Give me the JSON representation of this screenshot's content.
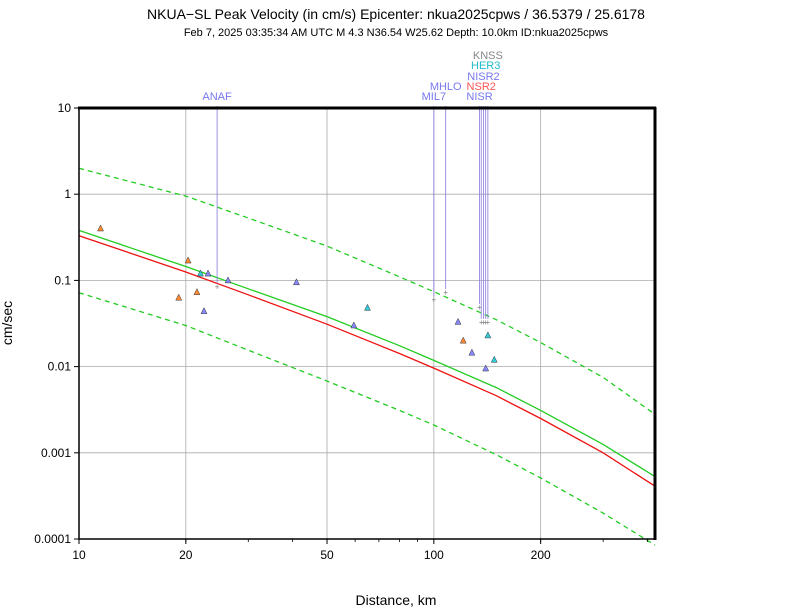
{
  "chart_data": {
    "type": "scatter",
    "title": "NKUA−SL Peak Velocity (in cm/s)  Epicenter: nkua2025cpws / 36.5379 / 25.6178",
    "subtitle": "Feb  7, 2025 03:35:34 AM UTC    M 4.3    N36.54 W25.62    Depth: 10.0km    ID:nkua2025cpws",
    "xlabel": "Distance, km",
    "ylabel": "cm/sec",
    "x_scale": "log",
    "y_scale": "log",
    "xlim": [
      10,
      420
    ],
    "ylim": [
      0.0001,
      10
    ],
    "grid": true,
    "x_ticks": [
      10,
      20,
      50,
      100,
      200
    ],
    "x_tick_labels": [
      "10",
      "20",
      "50",
      "100",
      "200"
    ],
    "y_ticks": [
      0.0001,
      0.001,
      0.01,
      0.1,
      1,
      10
    ],
    "y_tick_labels": [
      "0.0001",
      "0.001",
      "0.01",
      "0.1",
      "1",
      "10"
    ],
    "colors": {
      "median": "#22cc22",
      "bounds": "#22cc22",
      "bias_corrected": "#ee1111",
      "leader": "#8877dd",
      "flag": "#777777"
    },
    "series": [
      {
        "style": "solid-green",
        "x": [
          10,
          20,
          30,
          50,
          80,
          100,
          150,
          200,
          300,
          420
        ],
        "y": [
          0.38,
          0.145,
          0.08,
          0.038,
          0.0175,
          0.0118,
          0.0057,
          0.0031,
          0.00125,
          0.00053
        ]
      },
      {
        "style": "solid-red",
        "x": [
          10,
          20,
          30,
          50,
          80,
          100,
          150,
          200,
          300,
          420
        ],
        "y": [
          0.33,
          0.125,
          0.068,
          0.031,
          0.0142,
          0.0096,
          0.0046,
          0.0025,
          0.001,
          0.00041
        ]
      },
      {
        "style": "dashed-green",
        "x": [
          10,
          20,
          30,
          50,
          80,
          100,
          150,
          200,
          300,
          420
        ],
        "y": [
          2.0,
          0.95,
          0.53,
          0.25,
          0.11,
          0.074,
          0.035,
          0.019,
          0.0075,
          0.0028
        ]
      },
      {
        "style": "dashed-green",
        "x": [
          10,
          20,
          30,
          50,
          80,
          100,
          150,
          200,
          300,
          420
        ],
        "y": [
          0.072,
          0.03,
          0.0155,
          0.0068,
          0.0031,
          0.0021,
          0.00095,
          0.00051,
          0.0002,
          8.5e-05
        ]
      }
    ],
    "points": [
      {
        "x": 11.5,
        "y": 0.4,
        "color": "#ff8833"
      },
      {
        "x": 19.1,
        "y": 0.063,
        "color": "#ff8833"
      },
      {
        "x": 20.3,
        "y": 0.17,
        "color": "#ff8833"
      },
      {
        "x": 21.5,
        "y": 0.073,
        "color": "#ff8833"
      },
      {
        "x": 22.0,
        "y": 0.12,
        "color": "#33ccdd"
      },
      {
        "x": 22.5,
        "y": 0.044,
        "color": "#8888ff"
      },
      {
        "x": 23.1,
        "y": 0.12,
        "color": "#8888ff"
      },
      {
        "x": 26.3,
        "y": 0.1,
        "color": "#8888ff"
      },
      {
        "x": 41.0,
        "y": 0.095,
        "color": "#8888ff"
      },
      {
        "x": 59.5,
        "y": 0.03,
        "color": "#8888ff"
      },
      {
        "x": 65.0,
        "y": 0.048,
        "color": "#33ccdd"
      },
      {
        "x": 117,
        "y": 0.033,
        "color": "#8888ff"
      },
      {
        "x": 121,
        "y": 0.02,
        "color": "#ff8833"
      },
      {
        "x": 128,
        "y": 0.0145,
        "color": "#8888ff"
      },
      {
        "x": 140,
        "y": 0.0095,
        "color": "#8888ff"
      },
      {
        "x": 142,
        "y": 0.023,
        "color": "#33ccdd"
      },
      {
        "x": 148,
        "y": 0.012,
        "color": "#33ccdd"
      }
    ],
    "flagged_stations": [
      {
        "name": "ANAF",
        "x": 24.5,
        "y": 0.085,
        "color": "#7777ee",
        "label_row": 0
      },
      {
        "name": "MIL7",
        "x": 100,
        "y": 0.06,
        "color": "#7777ee",
        "label_row": 0
      },
      {
        "name": "MHLO",
        "x": 108,
        "y": 0.073,
        "color": "#7777ee",
        "label_row": 1
      },
      {
        "name": "NISR",
        "x": 134.5,
        "y": 0.049,
        "color": "#7777ee",
        "label_row": 0
      },
      {
        "name": "NSR2",
        "x": 136,
        "y": 0.033,
        "color": "#ff5555",
        "label_row": 1
      },
      {
        "name": "NISR2",
        "x": 138,
        "y": 0.033,
        "color": "#7777ee",
        "label_row": 2
      },
      {
        "name": "HER3",
        "x": 140,
        "y": 0.033,
        "color": "#22bbcc",
        "label_row": 3
      },
      {
        "name": "KNSS",
        "x": 142,
        "y": 0.033,
        "color": "#888888",
        "label_row": 4
      }
    ]
  }
}
